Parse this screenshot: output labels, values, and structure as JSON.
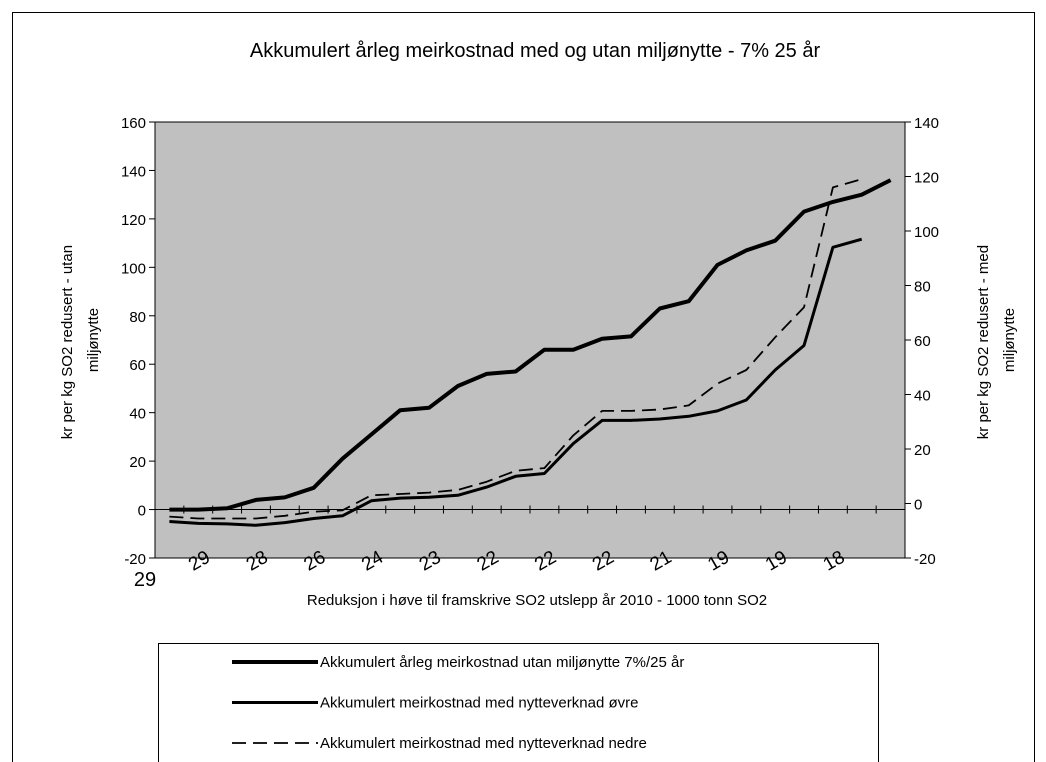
{
  "chart_data": {
    "type": "line",
    "title": "Akkumulert årleg meirkostnad med og utan miljønytte - 7% 25 år",
    "xlabel": "Reduksjon i høve til framskrive SO2 utslepp år 2010 - 1000 tonn SO2",
    "ylabel": [
      "kr per kg SO2 redusert - utan",
      "miljønytte"
    ],
    "y2label": [
      "kr per kg SO2 redusert - med",
      "miljønytte"
    ],
    "categories": [
      "29",
      "29",
      null,
      "28",
      null,
      "26",
      null,
      "24",
      null,
      "23",
      null,
      "22",
      null,
      "22",
      null,
      "22",
      null,
      "21",
      null,
      "19",
      null,
      "19",
      null,
      "18",
      null,
      null
    ],
    "ylim": [
      -20,
      160
    ],
    "yticks": [
      -20,
      0,
      20,
      40,
      60,
      80,
      100,
      120,
      140,
      160
    ],
    "y2lim": [
      -20,
      140
    ],
    "y2ticks": [
      -20,
      0,
      20,
      40,
      60,
      80,
      100,
      120,
      140
    ],
    "background": "#c0c0c0",
    "series": [
      {
        "name": "Akkumulert årleg meirkostnad utan miljønytte 7%/25 år",
        "color": "#000000",
        "width": 4,
        "dash": false,
        "values": [
          0,
          0,
          0.5,
          4,
          5,
          9,
          21,
          31,
          41,
          42,
          51,
          56,
          57,
          66,
          66,
          70.5,
          71.5,
          83,
          86,
          101,
          107,
          111,
          123,
          127,
          130,
          136
        ]
      },
      {
        "name": "Akkumulert meirkostnad med nytteverknad øvre",
        "color": "#000000",
        "width": 3,
        "dash": false,
        "axis": "y2",
        "values": [
          -6.6,
          -7.3,
          -7.5,
          -8,
          -7,
          -5.5,
          -4.5,
          1,
          2,
          2.3,
          3,
          6,
          10,
          11,
          22,
          30.5,
          30.5,
          31,
          32,
          34,
          38,
          49,
          58,
          94,
          97,
          null
        ]
      },
      {
        "name": "Akkumulert meirkostnad med nytteverknad nedre",
        "color": "#000000",
        "width": 1.8,
        "dash": true,
        "axis": "y2",
        "values": [
          -4.8,
          -5.5,
          -5.5,
          -5.5,
          -4.5,
          -3,
          -2.5,
          3,
          3.5,
          4,
          5,
          8,
          12,
          13,
          25,
          34,
          34,
          34.5,
          36,
          44,
          49,
          61,
          72,
          116,
          119,
          null
        ]
      }
    ]
  }
}
